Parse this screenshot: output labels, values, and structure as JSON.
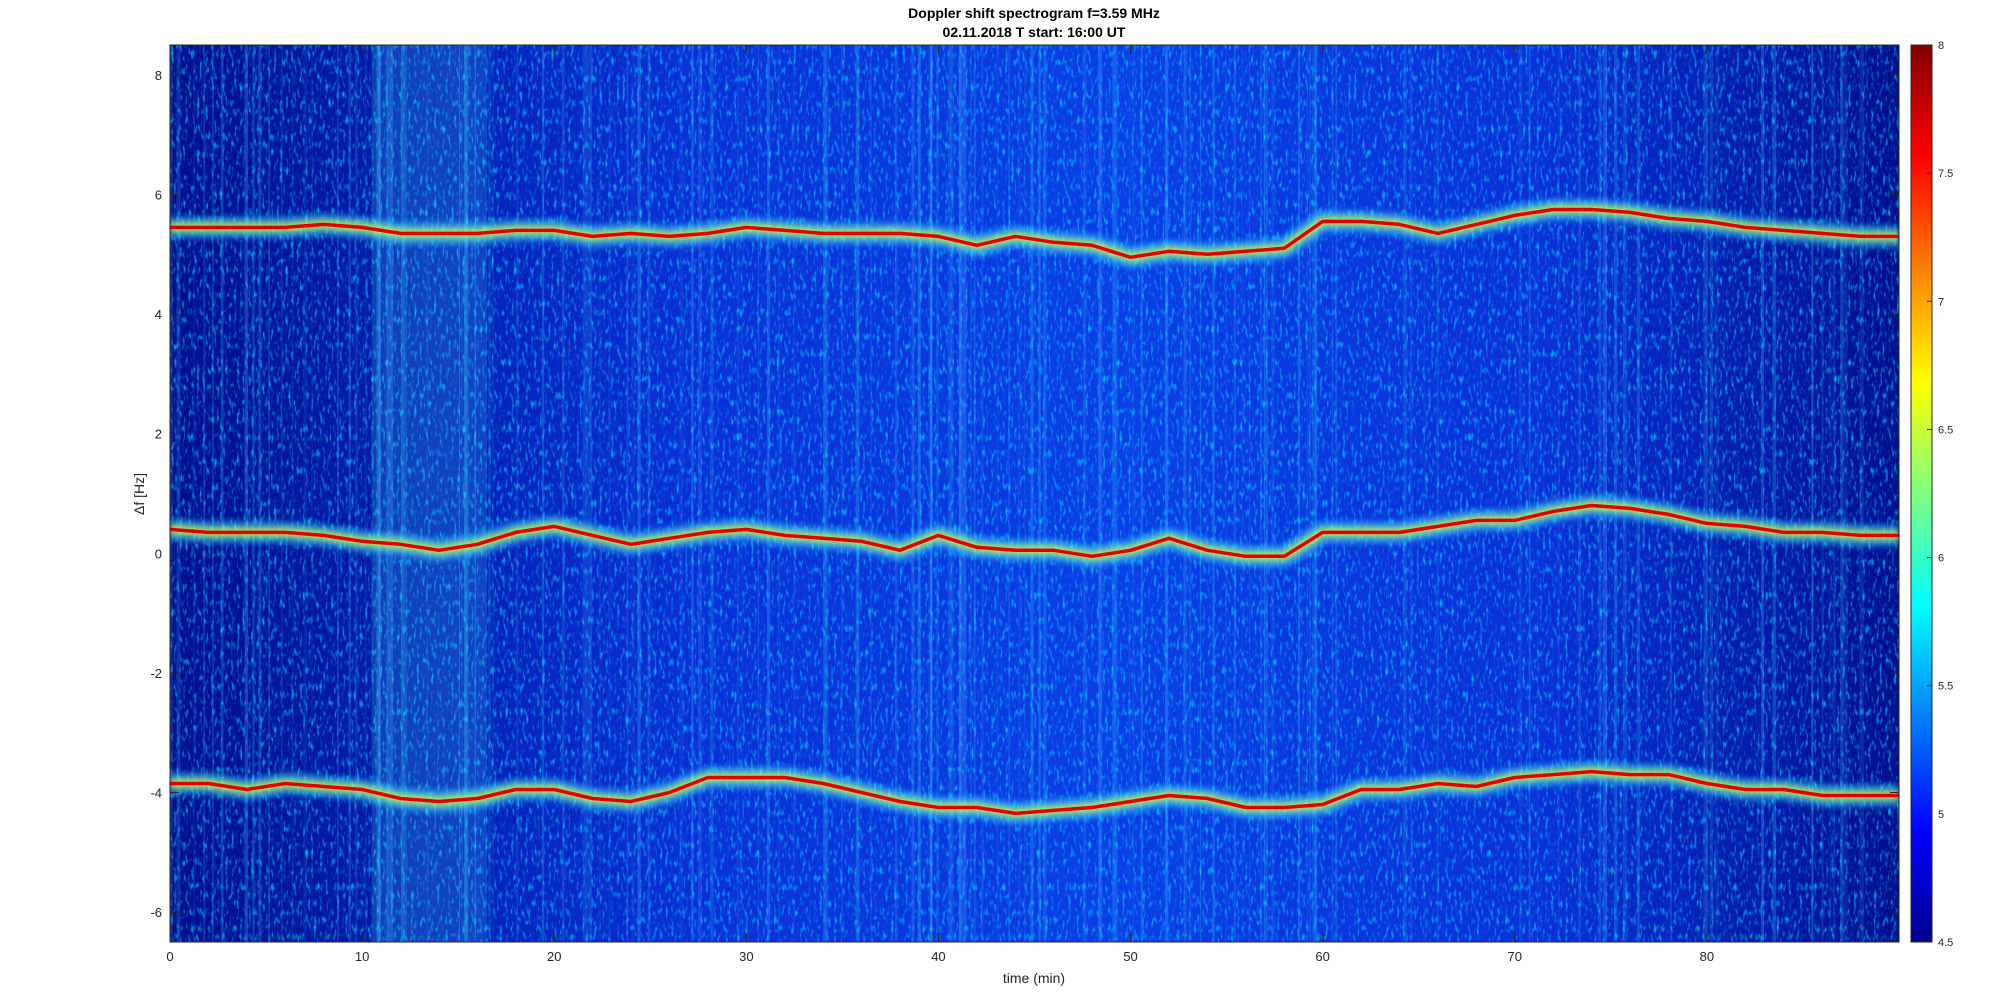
{
  "chart_data": {
    "type": "heatmap",
    "title": "Doppler shift spectrogram f=3.59 MHz",
    "subtitle": "02.11.2018   T start: 16:00 UT",
    "xlabel": "time (min)",
    "ylabel": "Δf [Hz]",
    "xlim": [
      0,
      90
    ],
    "ylim": [
      -6.5,
      8.5
    ],
    "x_ticks": [
      0,
      10,
      20,
      30,
      40,
      50,
      60,
      70,
      80
    ],
    "y_ticks": [
      -6,
      -4,
      -2,
      0,
      2,
      4,
      6,
      8
    ],
    "colorbar": {
      "colormap": "jet",
      "range": [
        4.5,
        8
      ],
      "ticks": [
        "4.5",
        "5",
        "5.5",
        "6",
        "6.5",
        "7",
        "7.5",
        "8"
      ]
    },
    "series": [
      {
        "x": [
          0,
          2,
          4,
          6,
          8,
          10,
          12,
          14,
          16,
          18,
          20,
          22,
          24,
          26,
          28,
          30,
          32,
          34,
          36,
          38,
          40,
          42,
          44,
          46,
          48,
          50,
          52,
          54,
          56,
          58,
          60,
          62,
          64,
          66,
          68,
          70,
          72,
          74,
          76,
          78,
          80,
          82,
          84,
          86,
          88,
          90
        ],
        "y": [
          5.45,
          5.45,
          5.45,
          5.45,
          5.5,
          5.45,
          5.35,
          5.35,
          5.35,
          5.4,
          5.4,
          5.3,
          5.35,
          5.3,
          5.35,
          5.45,
          5.4,
          5.35,
          5.35,
          5.35,
          5.3,
          5.15,
          5.3,
          5.2,
          5.15,
          4.95,
          5.05,
          5.0,
          5.05,
          5.1,
          5.55,
          5.55,
          5.5,
          5.35,
          5.5,
          5.65,
          5.75,
          5.75,
          5.7,
          5.6,
          5.55,
          5.45,
          5.4,
          5.35,
          5.3,
          5.3
        ]
      },
      {
        "x": [
          0,
          2,
          4,
          6,
          8,
          10,
          12,
          14,
          16,
          18,
          20,
          22,
          24,
          26,
          28,
          30,
          32,
          34,
          36,
          38,
          40,
          42,
          44,
          46,
          48,
          50,
          52,
          54,
          56,
          58,
          60,
          62,
          64,
          66,
          68,
          70,
          72,
          74,
          76,
          78,
          80,
          82,
          84,
          86,
          88,
          90
        ],
        "y": [
          0.4,
          0.35,
          0.35,
          0.35,
          0.3,
          0.2,
          0.15,
          0.05,
          0.15,
          0.35,
          0.45,
          0.3,
          0.15,
          0.25,
          0.35,
          0.4,
          0.3,
          0.25,
          0.2,
          0.05,
          0.3,
          0.1,
          0.05,
          0.05,
          -0.05,
          0.05,
          0.25,
          0.05,
          -0.05,
          -0.05,
          0.35,
          0.35,
          0.35,
          0.45,
          0.55,
          0.55,
          0.7,
          0.8,
          0.75,
          0.65,
          0.5,
          0.45,
          0.35,
          0.35,
          0.3,
          0.3
        ]
      },
      {
        "x": [
          0,
          2,
          4,
          6,
          8,
          10,
          12,
          14,
          16,
          18,
          20,
          22,
          24,
          26,
          28,
          30,
          32,
          34,
          36,
          38,
          40,
          42,
          44,
          46,
          48,
          50,
          52,
          54,
          56,
          58,
          60,
          62,
          64,
          66,
          68,
          70,
          72,
          74,
          76,
          78,
          80,
          82,
          84,
          86,
          88,
          90
        ],
        "y": [
          -3.85,
          -3.85,
          -3.95,
          -3.85,
          -3.9,
          -3.95,
          -4.1,
          -4.15,
          -4.1,
          -3.95,
          -3.95,
          -4.1,
          -4.15,
          -4.0,
          -3.75,
          -3.75,
          -3.75,
          -3.85,
          -4.0,
          -4.15,
          -4.25,
          -4.25,
          -4.35,
          -4.3,
          -4.25,
          -4.15,
          -4.05,
          -4.1,
          -4.25,
          -4.25,
          -4.2,
          -3.95,
          -3.95,
          -3.85,
          -3.9,
          -3.75,
          -3.7,
          -3.65,
          -3.7,
          -3.7,
          -3.85,
          -3.95,
          -3.95,
          -4.05,
          -4.05,
          -4.05
        ]
      }
    ]
  }
}
